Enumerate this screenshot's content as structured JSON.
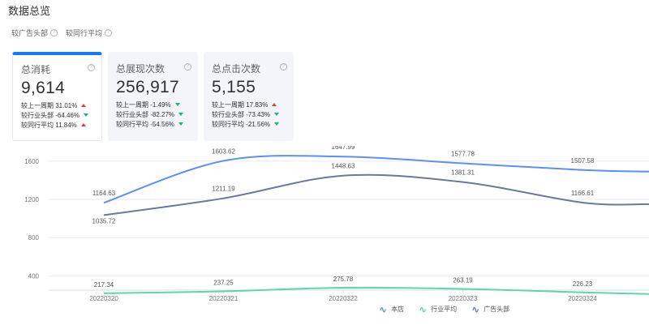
{
  "page": {
    "title": "数据总览"
  },
  "compare": [
    {
      "label": "较广告头部",
      "icon": "help-circle-icon"
    },
    {
      "label": "较同行平均",
      "icon": "help-circle-icon"
    }
  ],
  "cards": [
    {
      "title": "总消耗",
      "value": "9,614",
      "active": true,
      "rows": [
        {
          "label": "较上一周期",
          "value": "31.01%",
          "trend": "up"
        },
        {
          "label": "较行业头部",
          "value": "-64.46%",
          "trend": "down"
        },
        {
          "label": "较同行平均",
          "value": "11.84%",
          "trend": "up"
        }
      ]
    },
    {
      "title": "总展现次数",
      "value": "256,917",
      "active": false,
      "rows": [
        {
          "label": "较上一周期",
          "value": "-1.49%",
          "trend": "down"
        },
        {
          "label": "较行业头部",
          "value": "-82.27%",
          "trend": "down"
        },
        {
          "label": "较同行平均",
          "value": "-54.56%",
          "trend": "down"
        }
      ]
    },
    {
      "title": "总点击次数",
      "value": "5,155",
      "active": false,
      "rows": [
        {
          "label": "较上一周期",
          "value": "17.83%",
          "trend": "up"
        },
        {
          "label": "较行业头部",
          "value": "-73.43%",
          "trend": "down"
        },
        {
          "label": "较同行平均",
          "value": "-21.56%",
          "trend": "down"
        }
      ]
    }
  ],
  "colors": {
    "accent": "#1677ff",
    "up": "#e23b3b",
    "down": "#19b86a"
  },
  "chart_data": {
    "type": "line",
    "x": [
      "20220320",
      "20220321",
      "20220322",
      "20220323",
      "20220324"
    ],
    "yticks": [
      400,
      800,
      1200,
      1600
    ],
    "ylim": [
      250,
      1760
    ],
    "grid": true,
    "legend_position": "bottom-right",
    "series": [
      {
        "name": "本店",
        "color": "#5b8ff9",
        "values": [
          1164.63,
          1603.62,
          1647.99,
          1577.78,
          1507.58
        ],
        "labels": [
          "1164.63",
          "1603.62",
          "1647.99",
          "1577.78",
          "1507.58"
        ]
      },
      {
        "name": "行业平均",
        "color": "#5ad8a6",
        "values": [
          217.34,
          237.25,
          275.78,
          263.19,
          226.23
        ],
        "labels": [
          "217.34",
          "237.25",
          "275.78",
          "263.19",
          "226.23"
        ]
      },
      {
        "name": "广告头部",
        "color": "#6b7a99",
        "values": [
          1035.72,
          1211.19,
          1448.63,
          1381.31,
          1166.61
        ],
        "labels": [
          "1035.72",
          "1211.19",
          "1448.63",
          "1381.31",
          "1166.61"
        ]
      }
    ]
  }
}
